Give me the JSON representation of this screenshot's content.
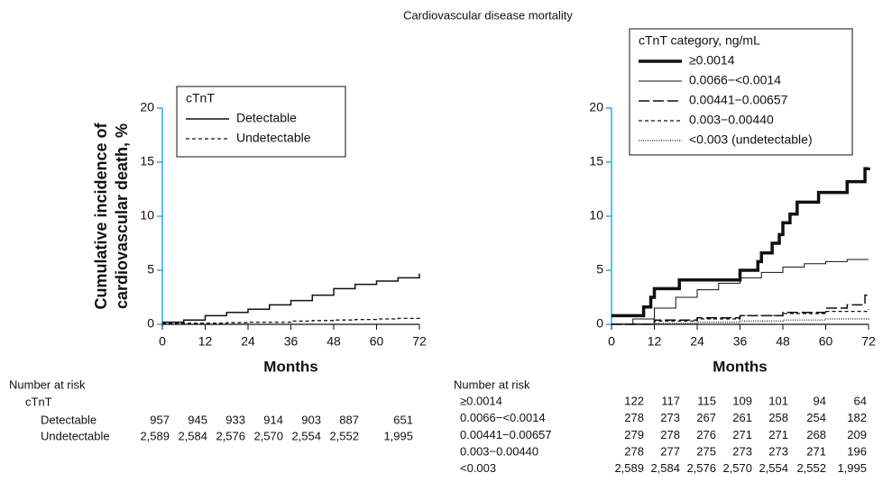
{
  "title": "Cardiovascular disease mortality",
  "chart_data": [
    {
      "type": "line",
      "step": true,
      "ylabel": [
        "Cumulative incidence of",
        "cardiovascular death, %"
      ],
      "xlabel": "Months",
      "xlim": [
        0,
        72
      ],
      "xticks": [
        0,
        12,
        24,
        36,
        48,
        60,
        72
      ],
      "ylim": [
        0,
        20
      ],
      "yticks": [
        0,
        5,
        10,
        15,
        20
      ],
      "y_axis_color": "#29abe2",
      "legend_title": "cTnT",
      "series": [
        {
          "name": "Detectable",
          "color": "#111111",
          "style": "solid",
          "x": [
            0,
            6,
            12,
            18,
            24,
            30,
            36,
            42,
            48,
            54,
            60,
            66,
            72
          ],
          "values": [
            0.2,
            0.4,
            0.8,
            1.1,
            1.4,
            1.8,
            2.2,
            2.7,
            3.3,
            3.7,
            4.0,
            4.3,
            4.7
          ]
        },
        {
          "name": "Undetectable",
          "color": "#111111",
          "style": "dash",
          "x": [
            0,
            6,
            12,
            18,
            24,
            30,
            36,
            42,
            48,
            54,
            60,
            66,
            72
          ],
          "values": [
            0.1,
            0.1,
            0.1,
            0.15,
            0.2,
            0.2,
            0.3,
            0.35,
            0.4,
            0.45,
            0.5,
            0.55,
            0.6
          ]
        }
      ],
      "risk_table": {
        "title": "Number at risk",
        "group": "cTnT",
        "rows": [
          {
            "name": "Detectable",
            "values": [
              "957",
              "945",
              "933",
              "914",
              "903",
              "887",
              "651"
            ]
          },
          {
            "name": "Undetectable",
            "values": [
              "2,589",
              "2,584",
              "2,576",
              "2,570",
              "2,554",
              "2,552",
              "1,995"
            ]
          }
        ]
      }
    },
    {
      "type": "line",
      "step": true,
      "xlabel": "Months",
      "xlim": [
        0,
        72
      ],
      "xticks": [
        0,
        12,
        24,
        36,
        48,
        60,
        72
      ],
      "ylim": [
        0,
        20
      ],
      "yticks": [
        0,
        5,
        10,
        15,
        20
      ],
      "y_axis_color": "#29abe2",
      "legend_title": "cTnT category, ng/mL",
      "series": [
        {
          "name": "≥0.0014",
          "color": "#111111",
          "style": "bold",
          "x": [
            0,
            6,
            9,
            11,
            12,
            18,
            19,
            35,
            36,
            40,
            41,
            42,
            45,
            47,
            48,
            50,
            52,
            58,
            66,
            71,
            72
          ],
          "values": [
            0.8,
            0.8,
            1.6,
            2.5,
            3.3,
            3.3,
            4.1,
            4.1,
            5.0,
            5.0,
            5.8,
            6.6,
            7.5,
            8.3,
            9.4,
            10.2,
            11.3,
            12.2,
            13.2,
            14.4,
            14.5
          ]
        },
        {
          "name": "0.0066−<0.0014",
          "color": "#111111",
          "style": "thin",
          "x": [
            0,
            6,
            12,
            18,
            24,
            30,
            36,
            42,
            48,
            54,
            60,
            66,
            72
          ],
          "values": [
            0,
            0.5,
            1.5,
            2.5,
            3.2,
            3.8,
            4.3,
            4.8,
            5.3,
            5.6,
            5.8,
            6.0,
            6.0
          ]
        },
        {
          "name": "0.00441−0.00657",
          "color": "#111111",
          "style": "long-dash",
          "x": [
            0,
            12,
            24,
            36,
            48,
            60,
            66,
            71,
            72
          ],
          "values": [
            0,
            0.4,
            0.6,
            0.8,
            1.1,
            1.5,
            1.8,
            2.7,
            2.7
          ]
        },
        {
          "name": "0.003−0.00440",
          "color": "#111111",
          "style": "dash",
          "x": [
            0,
            12,
            24,
            36,
            48,
            60,
            72
          ],
          "values": [
            0,
            0.3,
            0.5,
            0.8,
            1.0,
            1.2,
            1.4
          ]
        },
        {
          "name": "<0.003 (undetectable)",
          "color": "#111111",
          "style": "dot",
          "x": [
            0,
            12,
            24,
            36,
            48,
            60,
            72
          ],
          "values": [
            0.05,
            0.1,
            0.2,
            0.3,
            0.4,
            0.5,
            0.6
          ]
        }
      ],
      "risk_table": {
        "title": "Number at risk",
        "rows": [
          {
            "name": "≥0.0014",
            "values": [
              "122",
              "117",
              "115",
              "109",
              "101",
              "94",
              "64"
            ]
          },
          {
            "name": "0.0066−<0.0014",
            "values": [
              "278",
              "273",
              "267",
              "261",
              "258",
              "254",
              "182"
            ]
          },
          {
            "name": "0.00441−0.00657",
            "values": [
              "279",
              "278",
              "276",
              "271",
              "271",
              "268",
              "209"
            ]
          },
          {
            "name": "0.003−0.00440",
            "values": [
              "278",
              "277",
              "275",
              "273",
              "273",
              "271",
              "196"
            ]
          },
          {
            "name": "<0.003",
            "values": [
              "2,589",
              "2,584",
              "2,576",
              "2,570",
              "2,554",
              "2,552",
              "1,995"
            ]
          }
        ]
      }
    }
  ]
}
